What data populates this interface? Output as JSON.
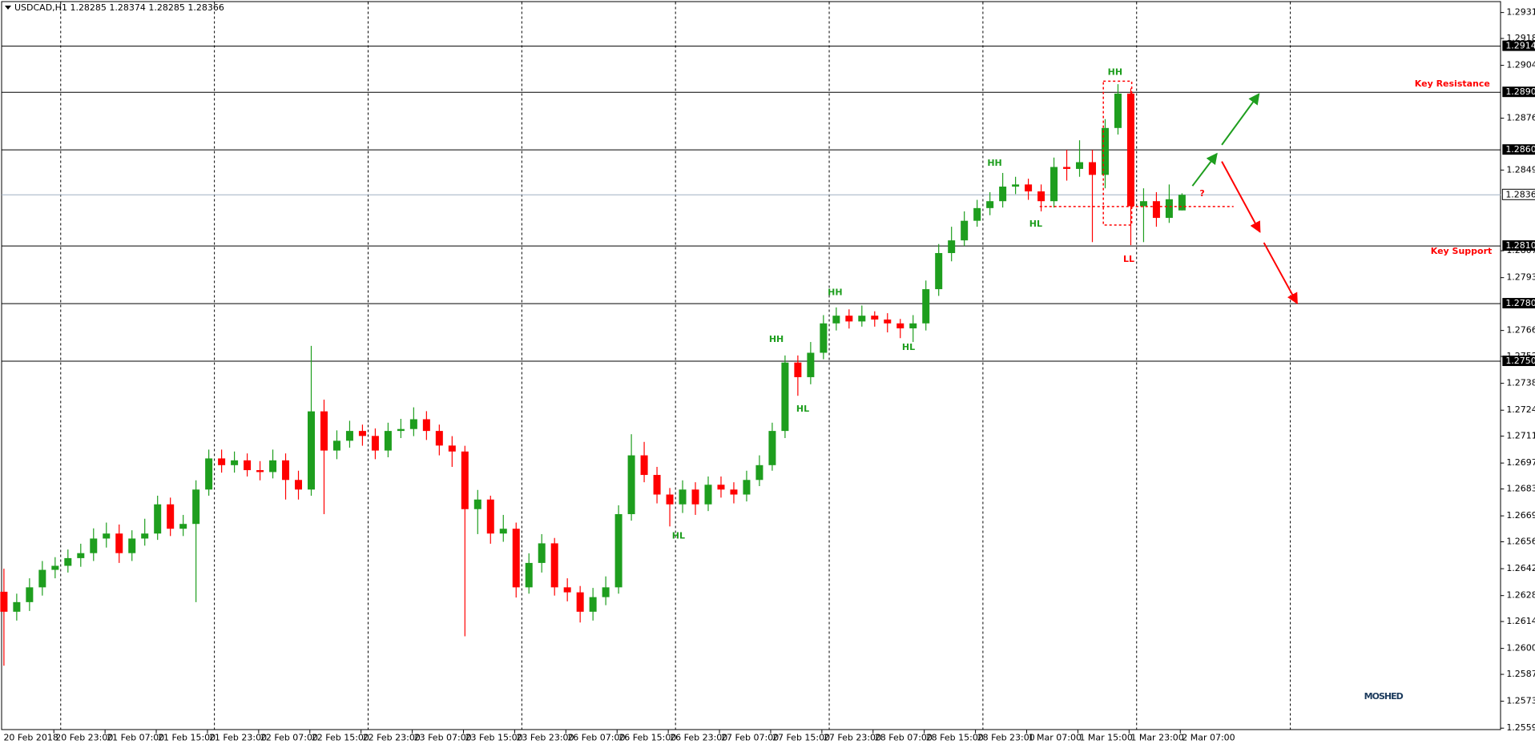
{
  "chart_data": {
    "type": "candlestick",
    "title": "USDCAD,H1  1.28285 1.28374 1.28285 1.28366",
    "up_color": "#1e9e1e",
    "down_color": "#ff0000",
    "level_color": "#000000",
    "current_color": "#9fb0c4",
    "open": [
      1.263,
      1.26196,
      1.26246,
      1.26323,
      1.26414,
      1.26435,
      1.26475,
      1.26501,
      1.26577,
      1.26603,
      1.26501,
      1.26577,
      1.26603,
      1.26755,
      1.26628,
      1.26653,
      1.26832,
      1.26994,
      1.26959,
      1.26984,
      1.26933,
      1.26923,
      1.26984,
      1.26882,
      1.26832,
      1.27239,
      1.27035,
      1.27086,
      1.27137,
      1.27111,
      1.27035,
      1.27137,
      1.27147,
      1.27198,
      1.27137,
      1.27061,
      1.2703,
      1.2673,
      1.2678,
      1.26603,
      1.26628,
      1.26323,
      1.2645,
      1.26552,
      1.26323,
      1.26297,
      1.26196,
      1.26272,
      1.26323,
      1.26704,
      1.2701,
      1.26908,
      1.26806,
      1.26755,
      1.26832,
      1.26755,
      1.26857,
      1.26832,
      1.26806,
      1.26882,
      1.26959,
      1.27137,
      1.27493,
      1.27417,
      1.27544,
      1.27697,
      1.27737,
      1.27707,
      1.27737,
      1.27717,
      1.27697,
      1.27671,
      1.27697,
      1.27875,
      1.28063,
      1.28129,
      1.28231,
      1.28297,
      1.28333,
      1.28409,
      1.2842,
      1.28384,
      1.28333,
      1.28511,
      1.28501,
      1.28536,
      1.2847,
      1.28714,
      1.28893,
      1.28307,
      1.28333,
      1.28246,
      1.28285
    ],
    "high": [
      1.2642,
      1.2629,
      1.2637,
      1.2646,
      1.2648,
      1.2652,
      1.2655,
      1.2663,
      1.2666,
      1.2665,
      1.2662,
      1.2668,
      1.268,
      1.2679,
      1.267,
      1.2688,
      1.2704,
      1.2704,
      1.2703,
      1.2702,
      1.2698,
      1.2704,
      1.2702,
      1.2693,
      1.2758,
      1.273,
      1.2714,
      1.2719,
      1.2717,
      1.2715,
      1.2718,
      1.272,
      1.2726,
      1.2724,
      1.2717,
      1.2711,
      1.2706,
      1.2683,
      1.268,
      1.267,
      1.2666,
      1.265,
      1.266,
      1.2658,
      1.2637,
      1.2633,
      1.2632,
      1.2638,
      1.2675,
      1.2712,
      1.2708,
      1.2695,
      1.2684,
      1.2688,
      1.2687,
      1.269,
      1.269,
      1.2687,
      1.2693,
      1.2701,
      1.2718,
      1.2753,
      1.2753,
      1.276,
      1.2774,
      1.2778,
      1.2777,
      1.2779,
      1.2776,
      1.2775,
      1.2772,
      1.2774,
      1.2792,
      1.2811,
      1.282,
      1.2828,
      1.2834,
      1.2838,
      1.2848,
      1.2846,
      1.2845,
      1.2842,
      1.2856,
      1.286,
      1.2865,
      1.286,
      1.2876,
      1.28942,
      1.2892,
      1.284,
      1.2838,
      1.2842,
      1.28374
    ],
    "low": [
      1.25915,
      1.2615,
      1.262,
      1.2628,
      1.2637,
      1.264,
      1.2643,
      1.2646,
      1.2653,
      1.2645,
      1.2646,
      1.2654,
      1.2657,
      1.2659,
      1.2659,
      1.26246,
      1.268,
      1.2692,
      1.2692,
      1.269,
      1.2688,
      1.2689,
      1.2678,
      1.2678,
      1.268,
      1.26704,
      1.2699,
      1.2705,
      1.2706,
      1.2699,
      1.27,
      1.271,
      1.2711,
      1.2709,
      1.2701,
      1.2695,
      1.26068,
      1.266,
      1.2655,
      1.2656,
      1.2627,
      1.2629,
      1.264,
      1.2628,
      1.2625,
      1.2614,
      1.2615,
      1.2623,
      1.2629,
      1.2667,
      1.2687,
      1.2676,
      1.2664,
      1.2671,
      1.267,
      1.2672,
      1.2679,
      1.2676,
      1.2677,
      1.2685,
      1.2693,
      1.271,
      1.2732,
      1.2738,
      1.2751,
      1.2766,
      1.2767,
      1.2768,
      1.2768,
      1.2765,
      1.2762,
      1.276,
      1.2766,
      1.2784,
      1.2802,
      1.281,
      1.282,
      1.2826,
      1.283,
      1.2837,
      1.2834,
      1.2828,
      1.283,
      1.2844,
      1.2846,
      1.2812,
      1.284,
      1.2868,
      1.28104,
      1.2812,
      1.282,
      1.2822,
      1.28285
    ],
    "close": [
      1.26196,
      1.26246,
      1.26323,
      1.26414,
      1.26435,
      1.26475,
      1.26501,
      1.26577,
      1.26603,
      1.26501,
      1.26577,
      1.26603,
      1.26755,
      1.26628,
      1.26653,
      1.26832,
      1.26994,
      1.26959,
      1.26984,
      1.26933,
      1.26923,
      1.26984,
      1.26882,
      1.26832,
      1.27239,
      1.27035,
      1.27086,
      1.27137,
      1.27111,
      1.27035,
      1.27137,
      1.27147,
      1.27198,
      1.27137,
      1.27061,
      1.2703,
      1.2673,
      1.2678,
      1.26603,
      1.26628,
      1.26323,
      1.2645,
      1.26552,
      1.26323,
      1.26297,
      1.26196,
      1.26272,
      1.26323,
      1.26704,
      1.2701,
      1.26908,
      1.26806,
      1.26755,
      1.26832,
      1.26755,
      1.26857,
      1.26832,
      1.26806,
      1.26882,
      1.26959,
      1.27137,
      1.27493,
      1.27417,
      1.27544,
      1.27697,
      1.27737,
      1.27707,
      1.27737,
      1.27717,
      1.27697,
      1.27671,
      1.27697,
      1.27875,
      1.28063,
      1.28129,
      1.28231,
      1.28297,
      1.28333,
      1.28409,
      1.2842,
      1.28384,
      1.28333,
      1.28511,
      1.28501,
      1.28536,
      1.2847,
      1.28714,
      1.28893,
      1.28307,
      1.28333,
      1.28246,
      1.28343,
      1.28366
    ],
    "x_labels": [
      "20 Feb 2018",
      "20 Feb 23:00",
      "21 Feb 07:00",
      "21 Feb 15:00",
      "21 Feb 23:00",
      "22 Feb 07:00",
      "22 Feb 15:00",
      "22 Feb 23:00",
      "23 Feb 07:00",
      "23 Feb 15:00",
      "23 Feb 23:00",
      "26 Feb 07:00",
      "26 Feb 15:00",
      "26 Feb 23:00",
      "27 Feb 07:00",
      "27 Feb 15:00",
      "27 Feb 23:00",
      "28 Feb 07:00",
      "28 Feb 15:00",
      "28 Feb 23:00",
      "1 Mar 07:00",
      "1 Mar 15:00",
      "1 Mar 23:00",
      "2 Mar 07:00"
    ],
    "ylim": [
      1.2558,
      1.2937
    ],
    "yticks": [
      1.29315,
      {
        "value": 1.2918,
        "label": "1.29180"
      },
      {
        "value": 1.2904,
        "label": "1.29040"
      },
      1.28765,
      1.28495,
      1.28075,
      1.27935,
      {
        "value": 1.2766,
        "label": "1.27660"
      },
      1.27525,
      1.27385,
      1.27245,
      {
        "value": 1.2711,
        "label": "1.27110"
      },
      {
        "value": 1.2697,
        "label": "1.26970"
      },
      1.26835,
      1.26695,
      {
        "value": 1.2656,
        "label": "1.26560"
      },
      {
        "value": 1.2642,
        "label": "1.26420"
      },
      {
        "value": 1.2628,
        "label": "1.26280"
      },
      1.26145,
      1.26005,
      {
        "value": 1.2587,
        "label": "1.25870"
      },
      {
        "value": 1.2573,
        "label": "1.25730"
      },
      {
        "value": 1.2559,
        "label": "1.25590"
      }
    ],
    "levels": [
      {
        "value": 1.2914,
        "label": "1.29140"
      },
      {
        "value": 1.289,
        "label": "1.28900"
      },
      {
        "value": 1.286,
        "label": "1.28600"
      },
      {
        "value": 1.281,
        "label": "1.28100"
      },
      {
        "value": 1.278,
        "label": "1.27800"
      },
      {
        "value": 1.275,
        "label": "1.27500"
      }
    ],
    "current": 1.28366,
    "annotations": [
      {
        "text": "HH",
        "color": "#1e9e1e"
      },
      {
        "text": "HH",
        "color": "#1e9e1e"
      },
      {
        "text": "HL",
        "color": "#1e9e1e"
      },
      {
        "text": "HH",
        "color": "#1e9e1e"
      },
      {
        "text": "HH",
        "color": "#1e9e1e"
      },
      {
        "text": "HL",
        "color": "#1e9e1e"
      },
      {
        "text": "HL",
        "color": "#1e9e1e"
      },
      {
        "text": "HL",
        "color": "#1e9e1e"
      },
      {
        "text": "LL",
        "color": "#ff0000"
      },
      {
        "text": "?",
        "color": "#ff0000"
      },
      {
        "text": "Key Resistance",
        "color": "#ff0000"
      },
      {
        "text": "Key Support",
        "color": "#ff0000"
      }
    ],
    "watermark": "MOSHED"
  }
}
